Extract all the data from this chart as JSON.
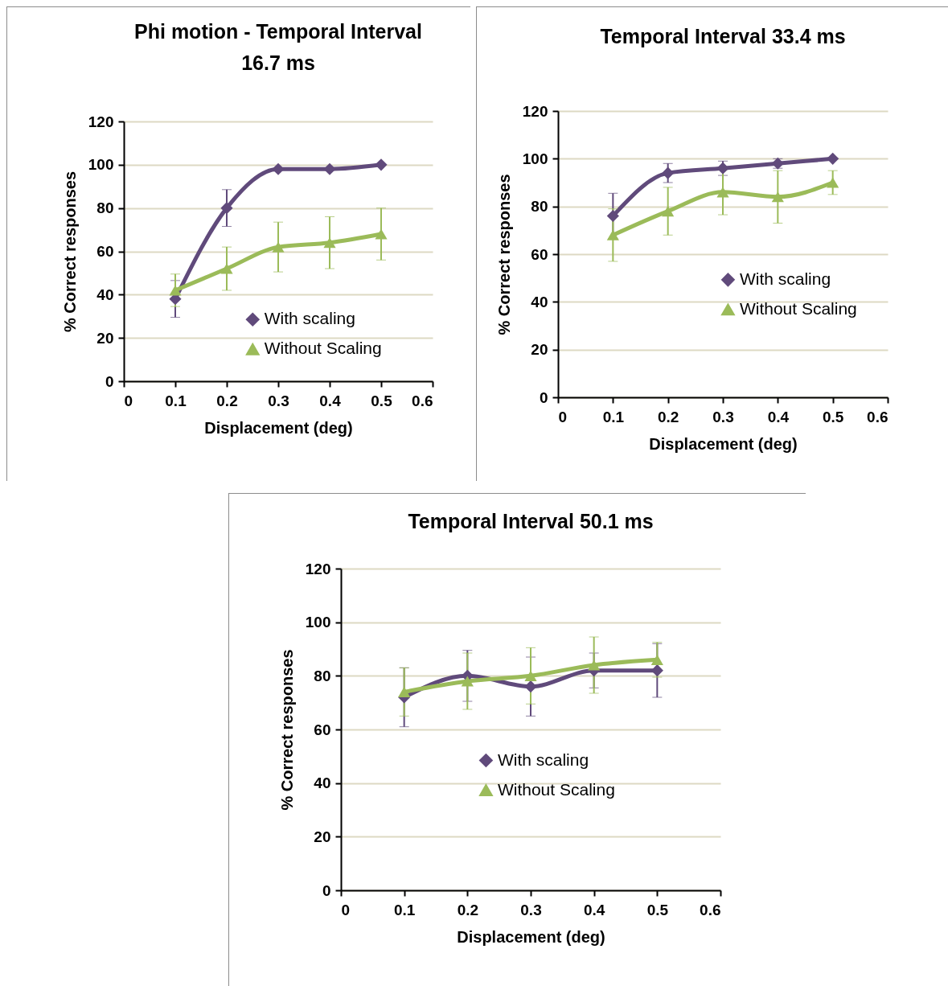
{
  "chart_data": [
    {
      "type": "line",
      "title": "Phi motion - Temporal Interval 16.7 ms",
      "xlabel": "Displacement (deg)",
      "ylabel": "% Correct responses",
      "x": [
        0.1,
        0.2,
        0.3,
        0.4,
        0.5
      ],
      "xlim": [
        0,
        0.6
      ],
      "xticks": [
        0,
        0.1,
        0.2,
        0.3,
        0.4,
        0.5,
        0.6
      ],
      "ylim": [
        0,
        120
      ],
      "yticks": [
        0,
        20,
        40,
        60,
        80,
        100,
        120
      ],
      "grid": "y",
      "legend": "bottom right",
      "line_style": "solid",
      "series": [
        {
          "name": "With scaling",
          "color": "#604a7b",
          "marker": "diamond",
          "values": [
            38,
            80,
            98,
            98,
            100
          ],
          "errors": [
            8.5,
            8.5,
            null,
            null,
            null
          ]
        },
        {
          "name": "Without Scaling",
          "color": "#9bbb59",
          "marker": "triangle",
          "values": [
            42,
            52,
            62,
            64,
            68
          ],
          "errors": [
            7.5,
            10,
            11.5,
            12,
            12
          ]
        }
      ]
    },
    {
      "type": "line",
      "title": "Temporal Interval 33.4 ms",
      "xlabel": "Displacement (deg)",
      "ylabel": "% Correct responses",
      "x": [
        0.1,
        0.2,
        0.3,
        0.4,
        0.5
      ],
      "xlim": [
        0,
        0.6
      ],
      "xticks": [
        0,
        0.1,
        0.2,
        0.3,
        0.4,
        0.5,
        0.6
      ],
      "ylim": [
        0,
        120
      ],
      "yticks": [
        0,
        20,
        40,
        60,
        80,
        100,
        120
      ],
      "grid": "y",
      "legend": "right",
      "line_style": "solid",
      "series": [
        {
          "name": "With scaling",
          "color": "#604a7b",
          "marker": "diamond",
          "values": [
            76,
            94,
            96,
            98,
            100
          ],
          "errors": [
            9.5,
            4,
            3,
            2,
            null
          ]
        },
        {
          "name": "Without Scaling",
          "color": "#9bbb59",
          "marker": "triangle",
          "values": [
            68,
            78,
            86,
            84,
            90
          ],
          "errors": [
            11,
            10,
            9.5,
            11,
            5
          ]
        }
      ]
    },
    {
      "type": "line",
      "title": "Temporal Interval 50.1 ms",
      "xlabel": "Displacement (deg)",
      "ylabel": "% Correct responses",
      "x": [
        0.1,
        0.2,
        0.3,
        0.4,
        0.5
      ],
      "xlim": [
        0,
        0.6
      ],
      "xticks": [
        0,
        0.1,
        0.2,
        0.3,
        0.4,
        0.5,
        0.6
      ],
      "ylim": [
        0,
        120
      ],
      "yticks": [
        0,
        20,
        40,
        60,
        80,
        100,
        120
      ],
      "grid": "y",
      "legend": "bottom",
      "line_style": "solid",
      "series": [
        {
          "name": "With scaling",
          "color": "#604a7b",
          "marker": "diamond",
          "values": [
            72,
            80,
            76,
            82,
            82
          ],
          "errors": [
            11,
            9.5,
            11,
            6.5,
            10
          ]
        },
        {
          "name": "Without Scaling",
          "color": "#9bbb59",
          "marker": "triangle",
          "values": [
            74,
            78,
            80,
            84,
            86
          ],
          "errors": [
            9,
            10.5,
            10.5,
            10.5,
            6.5
          ]
        }
      ]
    }
  ]
}
